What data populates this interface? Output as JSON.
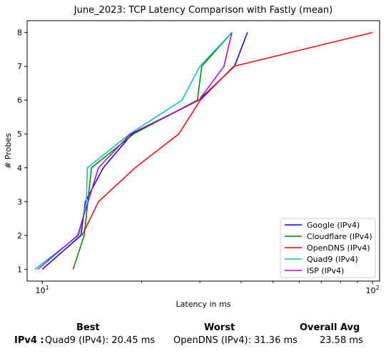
{
  "chart_data": {
    "type": "line",
    "title": "June_2023: TCP Latency Comparison with Fastly (mean)",
    "xlabel": "Latency in ms",
    "ylabel": "# Probes",
    "xscale": "log",
    "xlim": [
      9.0,
      105
    ],
    "ylim": [
      0.65,
      8.35
    ],
    "xticks": [
      {
        "value": 10,
        "label": "10^1"
      },
      {
        "value": 100,
        "label": "10^2"
      }
    ],
    "yticks": [
      1,
      2,
      3,
      4,
      5,
      6,
      7,
      8
    ],
    "grid": false,
    "legend": "bottom-right",
    "series": [
      {
        "name": "Google (IPv4)",
        "color": "#0000ff",
        "points": [
          [
            10.0,
            1
          ],
          [
            13.1,
            2
          ],
          [
            13.5,
            3
          ],
          [
            15.3,
            4
          ],
          [
            18.7,
            5
          ],
          [
            29.8,
            6
          ],
          [
            38.2,
            7
          ],
          [
            41.8,
            8
          ]
        ]
      },
      {
        "name": "Cloudflare (IPv4)",
        "color": "#008000",
        "points": [
          [
            12.4,
            1
          ],
          [
            13.4,
            2
          ],
          [
            14.1,
            4
          ],
          [
            18.9,
            5
          ],
          [
            29.5,
            6
          ],
          [
            30.4,
            7
          ],
          [
            37.5,
            8
          ]
        ]
      },
      {
        "name": "OpenDNS (IPv4)",
        "color": "#ff0000",
        "points": [
          [
            13.2,
            2
          ],
          [
            14.8,
            3
          ],
          [
            19.1,
            4
          ],
          [
            25.9,
            5
          ],
          [
            30.1,
            6
          ],
          [
            38.0,
            7
          ],
          [
            100.0,
            8
          ]
        ]
      },
      {
        "name": "Quad9 (IPv4)",
        "color": "#00bfbf",
        "points": [
          [
            9.5,
            1
          ],
          [
            12.9,
            2
          ],
          [
            13.6,
            3
          ],
          [
            13.7,
            4
          ],
          [
            18.4,
            5
          ],
          [
            26.5,
            6
          ],
          [
            30.0,
            7
          ],
          [
            37.5,
            8
          ]
        ]
      },
      {
        "name": "ISP (IPv4)",
        "color": "#bf00bf",
        "points": [
          [
            9.7,
            1
          ],
          [
            12.8,
            2
          ],
          [
            14.8,
            4
          ],
          [
            18.5,
            5
          ],
          [
            29.8,
            6
          ],
          [
            35.5,
            7
          ],
          [
            37.5,
            8
          ]
        ]
      }
    ]
  },
  "summary": {
    "best_header": "Best",
    "worst_header": "Worst",
    "avg_header": "Overall Avg",
    "row_label": "IPv4 :",
    "best": "Quad9 (IPv4): 20.45 ms",
    "worst": "OpenDNS (IPv4): 31.36 ms",
    "avg": "23.58 ms"
  }
}
